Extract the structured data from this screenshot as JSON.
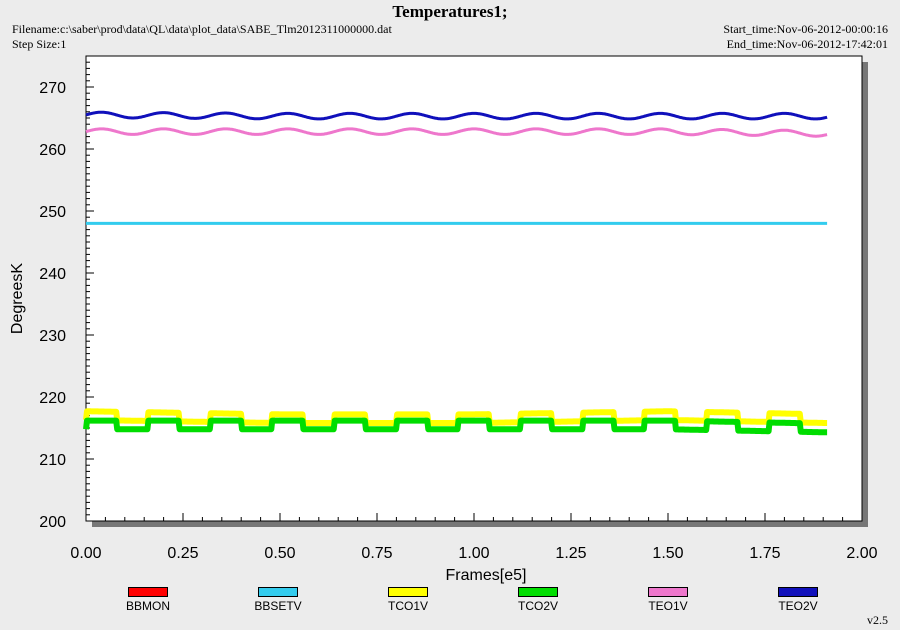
{
  "header": {
    "title": "Temperatures1;",
    "filename": "Filename:c:\\saber\\prod\\data\\QL\\data\\plot_data\\SABE_Tlm2012311000000.dat",
    "step_size": "Step Size:1",
    "start_time": "Start_time:Nov-06-2012-00:00:16",
    "end_time": "End_time:Nov-06-2012-17:42:01"
  },
  "version": "v2.5",
  "chart_data": {
    "type": "line",
    "title": "Temperatures1;",
    "xlabel": "Frames[e5]",
    "ylabel": "DegreesK",
    "xlim": [
      0,
      2.0
    ],
    "ylim": [
      200,
      275
    ],
    "x_ticks": [
      "0.00",
      "0.25",
      "0.50",
      "0.75",
      "1.00",
      "1.25",
      "1.50",
      "1.75",
      "2.00"
    ],
    "y_ticks": [
      "200",
      "210",
      "220",
      "230",
      "240",
      "250",
      "260",
      "270"
    ],
    "x_end": 1.91,
    "grid": false,
    "legend_placement": "bottom",
    "series": [
      {
        "name": "BBMON",
        "color": "#ff0000",
        "values": []
      },
      {
        "name": "BBSETV",
        "color": "#33ccee",
        "x": [
          0,
          0.5,
          1.0,
          1.5,
          1.91
        ],
        "values": [
          248,
          248,
          248,
          248,
          248
        ]
      },
      {
        "name": "TCO1V",
        "color": "#ffff00",
        "x": [
          0,
          0.5,
          1.0,
          1.5,
          1.91
        ],
        "values": [
          217,
          216.5,
          216.5,
          217,
          216.5
        ]
      },
      {
        "name": "TCO2V",
        "color": "#00dd00",
        "x": [
          0,
          0.5,
          1.0,
          1.5,
          1.91
        ],
        "values": [
          215.5,
          215.5,
          215.5,
          215.5,
          215
        ]
      },
      {
        "name": "TEO1V",
        "color": "#ee77cc",
        "x": [
          0,
          0.5,
          1.0,
          1.5,
          1.91
        ],
        "values": [
          262.8,
          262.8,
          262.8,
          262.8,
          262.5
        ]
      },
      {
        "name": "TEO2V",
        "color": "#1010bb",
        "x": [
          0,
          0.5,
          1.0,
          1.5,
          1.91
        ],
        "values": [
          265.5,
          265.3,
          265.3,
          265.3,
          265.3
        ]
      }
    ]
  }
}
